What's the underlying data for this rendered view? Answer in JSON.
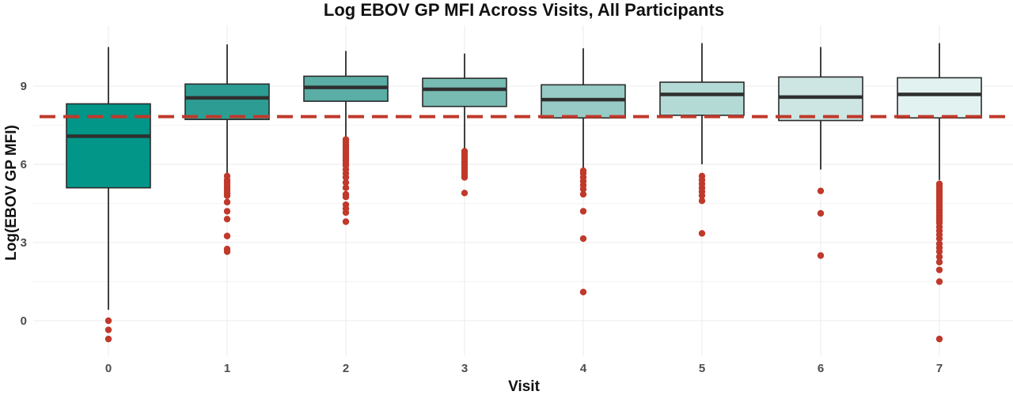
{
  "chart_data": {
    "type": "box",
    "title": "Log EBOV GP MFI Across Visits, All Participants",
    "xlabel": "Visit",
    "ylabel": "Log(EBOV GP MFI)",
    "categories": [
      "0",
      "1",
      "2",
      "3",
      "4",
      "5",
      "6",
      "7"
    ],
    "ylim": [
      -1.0,
      10.8
    ],
    "y_ticks": [
      "0",
      "3",
      "6",
      "9"
    ],
    "y_tick_values": [
      0,
      3,
      6,
      9
    ],
    "grid": true,
    "reference_line": {
      "y": 7.83,
      "style": "dashed",
      "color": "#c0392b"
    },
    "outlier_color": "#c0392b",
    "box_colors": [
      "#019688",
      "#2d9d93",
      "#5aaea5",
      "#78bbb3",
      "#98cbc5",
      "#b4dad5",
      "#cde6e3",
      "#e2f2f0"
    ],
    "boxes": [
      {
        "visit": "0",
        "whisker_low": 0.42,
        "q1": 5.1,
        "median": 7.08,
        "q3": 8.32,
        "whisker_high": 10.5,
        "outliers": [
          0.0,
          -0.35,
          -0.7
        ]
      },
      {
        "visit": "1",
        "whisker_low": 5.6,
        "q1": 7.72,
        "median": 8.55,
        "q3": 9.08,
        "whisker_high": 10.6,
        "outliers": [
          5.55,
          5.4,
          5.3,
          5.2,
          5.1,
          5.0,
          4.9,
          4.8,
          4.55,
          4.2,
          3.9,
          3.25,
          2.75,
          2.65
        ]
      },
      {
        "visit": "2",
        "whisker_low": 7.0,
        "q1": 8.42,
        "median": 8.95,
        "q3": 9.38,
        "whisker_high": 10.35,
        "outliers": [
          6.95,
          6.85,
          6.75,
          6.65,
          6.55,
          6.45,
          6.35,
          6.25,
          6.15,
          6.05,
          5.95,
          5.8,
          5.65,
          5.5,
          5.3,
          5.1,
          4.85,
          4.75,
          4.45,
          4.3,
          4.15,
          3.8
        ]
      },
      {
        "visit": "3",
        "whisker_low": 6.55,
        "q1": 8.22,
        "median": 8.88,
        "q3": 9.3,
        "whisker_high": 10.25,
        "outliers": [
          6.5,
          6.4,
          6.3,
          6.2,
          6.1,
          6.0,
          5.9,
          5.8,
          5.7,
          5.6,
          5.5,
          4.9
        ]
      },
      {
        "visit": "4",
        "whisker_low": 5.85,
        "q1": 7.78,
        "median": 8.48,
        "q3": 9.05,
        "whisker_high": 10.45,
        "outliers": [
          5.75,
          5.65,
          5.5,
          5.35,
          5.2,
          5.05,
          4.85,
          4.2,
          3.15,
          1.1
        ]
      },
      {
        "visit": "5",
        "whisker_low": 6.0,
        "q1": 7.88,
        "median": 8.68,
        "q3": 9.15,
        "whisker_high": 10.65,
        "outliers": [
          5.55,
          5.4,
          5.25,
          5.1,
          4.95,
          4.8,
          4.6,
          3.35
        ]
      },
      {
        "visit": "6",
        "whisker_low": 5.8,
        "q1": 7.68,
        "median": 8.58,
        "q3": 9.35,
        "whisker_high": 10.5,
        "outliers": [
          4.98,
          4.12,
          2.5
        ]
      },
      {
        "visit": "7",
        "whisker_low": 5.4,
        "q1": 7.78,
        "median": 8.68,
        "q3": 9.32,
        "whisker_high": 10.65,
        "outliers": [
          5.25,
          5.15,
          5.05,
          4.95,
          4.85,
          4.75,
          4.65,
          4.55,
          4.45,
          4.35,
          4.25,
          4.15,
          4.05,
          3.95,
          3.85,
          3.75,
          3.6,
          3.45,
          3.3,
          3.15,
          2.95,
          2.8,
          2.65,
          2.45,
          2.25,
          1.95,
          1.5,
          -0.7
        ]
      }
    ]
  }
}
